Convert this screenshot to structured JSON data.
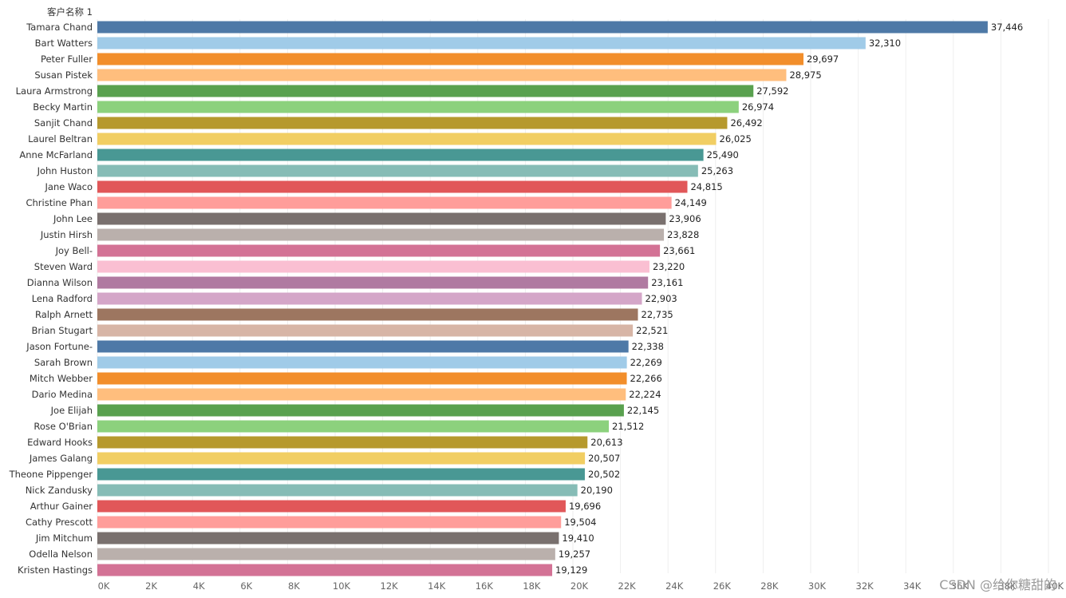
{
  "chart_data": {
    "type": "bar",
    "orientation": "horizontal",
    "dimension_label": "客户名称 1",
    "categories": [
      "Tamara Chand",
      "Bart Watters",
      "Peter Fuller",
      "Susan Pistek",
      "Laura Armstrong",
      "Becky Martin",
      "Sanjit Chand",
      "Laurel Beltran",
      "Anne McFarland",
      "John Huston",
      "Jane Waco",
      "Christine Phan",
      "John Lee",
      "Justin Hirsh",
      "Joy Bell-",
      "Steven Ward",
      "Dianna Wilson",
      "Lena Radford",
      "Ralph Arnett",
      "Brian Stugart",
      "Jason Fortune-",
      "Sarah Brown",
      "Mitch Webber",
      "Dario Medina",
      "Joe Elijah",
      "Rose O'Brian",
      "Edward Hooks",
      "James Galang",
      "Theone Pippenger",
      "Nick Zandusky",
      "Arthur Gainer",
      "Cathy Prescott",
      "Jim Mitchum",
      "Odella Nelson",
      "Kristen Hastings"
    ],
    "values": [
      37446,
      32310,
      29697,
      28975,
      27592,
      26974,
      26492,
      26025,
      25490,
      25263,
      24815,
      24149,
      23906,
      23828,
      23661,
      23220,
      23161,
      22903,
      22735,
      22521,
      22338,
      22269,
      22266,
      22224,
      22145,
      21512,
      20613,
      20507,
      20502,
      20190,
      19696,
      19504,
      19410,
      19257,
      19129
    ],
    "value_labels": [
      "37,446",
      "32,310",
      "29,697",
      "28,975",
      "27,592",
      "26,974",
      "26,492",
      "26,025",
      "25,490",
      "25,263",
      "24,815",
      "24,149",
      "23,906",
      "23,828",
      "23,661",
      "23,220",
      "23,161",
      "22,903",
      "22,735",
      "22,521",
      "22,338",
      "22,269",
      "22,266",
      "22,224",
      "22,145",
      "21,512",
      "20,613",
      "20,507",
      "20,502",
      "20,190",
      "19,696",
      "19,504",
      "19,410",
      "19,257",
      "19,129"
    ],
    "colors": [
      "#4e79a7",
      "#a0cbe8",
      "#f28e2b",
      "#ffbe7d",
      "#59a14f",
      "#8cd17d",
      "#b6992d",
      "#f1ce63",
      "#499894",
      "#86bcb6",
      "#e15759",
      "#ff9d9a",
      "#79706e",
      "#bab0ac",
      "#d37295",
      "#fabfd2",
      "#b07aa1",
      "#d4a6c8",
      "#9d7660",
      "#d7b5a6",
      "#4e79a7",
      "#a0cbe8",
      "#f28e2b",
      "#ffbe7d",
      "#59a14f",
      "#8cd17d",
      "#b6992d",
      "#f1ce63",
      "#499894",
      "#86bcb6",
      "#e15759",
      "#ff9d9a",
      "#79706e",
      "#bab0ac",
      "#d37295"
    ],
    "xlim": [
      0,
      40000
    ],
    "x_ticks": [
      0,
      2000,
      4000,
      6000,
      8000,
      10000,
      12000,
      14000,
      16000,
      18000,
      20000,
      22000,
      24000,
      26000,
      28000,
      30000,
      32000,
      34000,
      36000,
      38000,
      40000
    ],
    "x_tick_labels": [
      "0K",
      "2K",
      "4K",
      "6K",
      "8K",
      "10K",
      "12K",
      "14K",
      "16K",
      "18K",
      "20K",
      "22K",
      "24K",
      "26K",
      "28K",
      "30K",
      "32K",
      "34K",
      "36K",
      "38K",
      "40K"
    ],
    "grid": true,
    "grid_color": "#eeeeee"
  },
  "watermark": "CSDN @给你糖甜的"
}
